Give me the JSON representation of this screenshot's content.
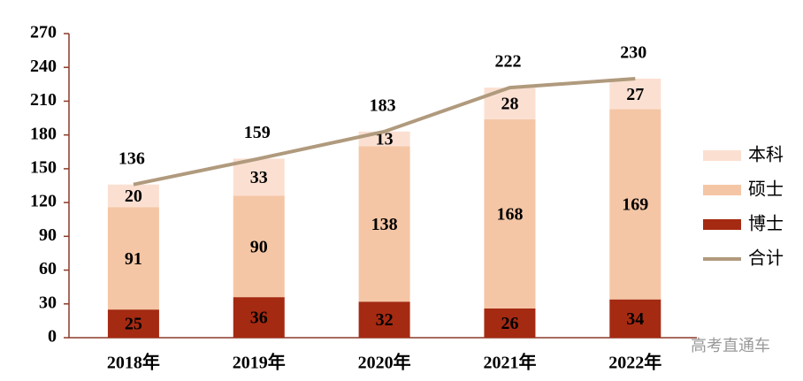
{
  "chart_data": {
    "type": "bar",
    "stacked": true,
    "categories": [
      "2018年",
      "2019年",
      "2020年",
      "2021年",
      "2022年"
    ],
    "series": [
      {
        "name": "博士",
        "color": "#a52a12",
        "values": [
          25,
          36,
          32,
          26,
          34
        ]
      },
      {
        "name": "硕士",
        "color": "#f5c6a5",
        "values": [
          91,
          90,
          138,
          168,
          169
        ]
      },
      {
        "name": "本科",
        "color": "#fbe0d2",
        "values": [
          20,
          33,
          13,
          28,
          27
        ]
      },
      {
        "name": "合计",
        "type": "line",
        "color": "#b09a7d",
        "values": [
          136,
          159,
          183,
          222,
          230
        ]
      }
    ],
    "ylim": [
      0,
      270
    ],
    "yticks": [
      0,
      30,
      60,
      90,
      120,
      150,
      180,
      210,
      240,
      270
    ],
    "legend": "right",
    "watermark": "高考直通车"
  }
}
